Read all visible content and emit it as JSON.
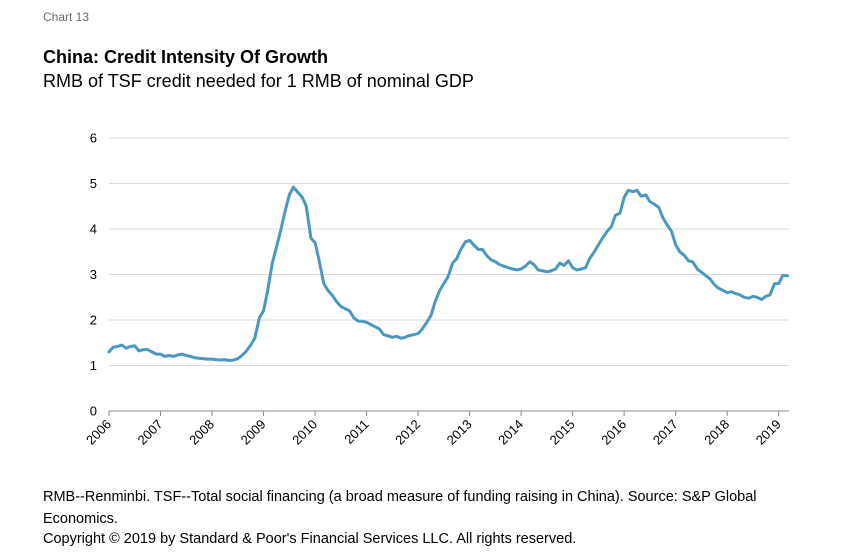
{
  "chart_label": "Chart 13",
  "title": "China: Credit Intensity Of Growth",
  "subtitle": "RMB of TSF credit needed for 1 RMB of nominal GDP",
  "note": "RMB--Renminbi. TSF--Total social financing (a broad measure of funding raising in China). Source: S&P Global Economics.",
  "copyright": "Copyright © 2019 by Standard & Poor's Financial Services LLC. All rights reserved.",
  "colors": {
    "line": "#4b98bf",
    "grid": "#d9d9d9",
    "axis": "#8c8c8c"
  },
  "chart_data": {
    "type": "line",
    "title": "China: Credit Intensity Of Growth",
    "subtitle": "RMB of TSF credit needed for 1 RMB of nominal GDP",
    "xlabel": "",
    "ylabel": "",
    "ylim": [
      0,
      6
    ],
    "yticks": [
      "0",
      "1",
      "2",
      "3",
      "4",
      "5",
      "6"
    ],
    "xlim": [
      2006.0,
      2019.2
    ],
    "xticks": [
      "2006",
      "2007",
      "2008",
      "2009",
      "2010",
      "2011",
      "2012",
      "2013",
      "2014",
      "2015",
      "2016",
      "2017",
      "2018",
      "2019"
    ],
    "grid": true,
    "legend": "none",
    "series": [
      {
        "x": [
          2006.0,
          2006.08,
          2006.17,
          2006.25,
          2006.33,
          2006.42,
          2006.5,
          2006.58,
          2006.67,
          2006.75,
          2006.83,
          2006.92,
          2007.0,
          2007.08,
          2007.17,
          2007.25,
          2007.33,
          2007.42,
          2007.5,
          2007.58,
          2007.67,
          2007.75,
          2007.83,
          2007.92,
          2008.0,
          2008.08,
          2008.17,
          2008.25,
          2008.33,
          2008.42,
          2008.5,
          2008.58,
          2008.67,
          2008.75,
          2008.83,
          2008.92,
          2009.0,
          2009.08,
          2009.17,
          2009.25,
          2009.33,
          2009.42,
          2009.5,
          2009.58,
          2009.67,
          2009.75,
          2009.83,
          2009.92,
          2010.0,
          2010.08,
          2010.17,
          2010.25,
          2010.33,
          2010.42,
          2010.5,
          2010.58,
          2010.67,
          2010.75,
          2010.83,
          2010.92,
          2011.0,
          2011.08,
          2011.17,
          2011.25,
          2011.33,
          2011.42,
          2011.5,
          2011.58,
          2011.67,
          2011.75,
          2011.83,
          2011.92,
          2012.0,
          2012.08,
          2012.17,
          2012.25,
          2012.33,
          2012.42,
          2012.5,
          2012.58,
          2012.67,
          2012.75,
          2012.83,
          2012.92,
          2013.0,
          2013.08,
          2013.17,
          2013.25,
          2013.33,
          2013.42,
          2013.5,
          2013.58,
          2013.67,
          2013.75,
          2013.83,
          2013.92,
          2014.0,
          2014.08,
          2014.17,
          2014.25,
          2014.33,
          2014.42,
          2014.5,
          2014.58,
          2014.67,
          2014.75,
          2014.83,
          2014.92,
          2015.0,
          2015.08,
          2015.17,
          2015.25,
          2015.33,
          2015.42,
          2015.5,
          2015.58,
          2015.67,
          2015.75,
          2015.83,
          2015.92,
          2016.0,
          2016.08,
          2016.17,
          2016.25,
          2016.33,
          2016.42,
          2016.5,
          2016.58,
          2016.67,
          2016.75,
          2016.83,
          2016.92,
          2017.0,
          2017.08,
          2017.17,
          2017.25,
          2017.33,
          2017.42,
          2017.5,
          2017.58,
          2017.67,
          2017.75,
          2017.83,
          2017.92,
          2018.0,
          2018.08,
          2018.17,
          2018.25,
          2018.33,
          2018.42,
          2018.5,
          2018.58,
          2018.67,
          2018.75,
          2018.83,
          2018.92,
          2019.0,
          2019.08,
          2019.17
        ],
        "values": [
          1.3,
          1.4,
          1.42,
          1.45,
          1.38,
          1.42,
          1.43,
          1.32,
          1.35,
          1.35,
          1.3,
          1.25,
          1.25,
          1.2,
          1.22,
          1.2,
          1.23,
          1.25,
          1.22,
          1.2,
          1.17,
          1.16,
          1.15,
          1.14,
          1.14,
          1.13,
          1.12,
          1.13,
          1.11,
          1.12,
          1.15,
          1.22,
          1.32,
          1.45,
          1.6,
          2.05,
          2.2,
          2.65,
          3.25,
          3.6,
          3.95,
          4.4,
          4.75,
          4.92,
          4.8,
          4.7,
          4.5,
          3.8,
          3.7,
          3.3,
          2.8,
          2.65,
          2.55,
          2.4,
          2.3,
          2.25,
          2.2,
          2.05,
          1.98,
          1.97,
          1.95,
          1.9,
          1.85,
          1.8,
          1.68,
          1.65,
          1.62,
          1.64,
          1.6,
          1.62,
          1.66,
          1.68,
          1.7,
          1.8,
          1.95,
          2.1,
          2.4,
          2.65,
          2.8,
          2.95,
          3.25,
          3.35,
          3.55,
          3.72,
          3.75,
          3.65,
          3.55,
          3.55,
          3.42,
          3.32,
          3.28,
          3.22,
          3.18,
          3.15,
          3.12,
          3.1,
          3.12,
          3.18,
          3.28,
          3.22,
          3.1,
          3.08,
          3.06,
          3.08,
          3.12,
          3.25,
          3.2,
          3.3,
          3.15,
          3.1,
          3.12,
          3.15,
          3.35,
          3.5,
          3.65,
          3.8,
          3.95,
          4.05,
          4.3,
          4.35,
          4.7,
          4.85,
          4.82,
          4.85,
          4.72,
          4.75,
          4.6,
          4.55,
          4.48,
          4.25,
          4.1,
          3.95,
          3.65,
          3.5,
          3.42,
          3.3,
          3.28,
          3.12,
          3.05,
          2.98,
          2.9,
          2.78,
          2.7,
          2.65,
          2.6,
          2.62,
          2.58,
          2.55,
          2.5,
          2.48,
          2.52,
          2.5,
          2.45,
          2.52,
          2.55,
          2.8,
          2.8,
          2.98,
          2.97
        ]
      }
    ]
  }
}
